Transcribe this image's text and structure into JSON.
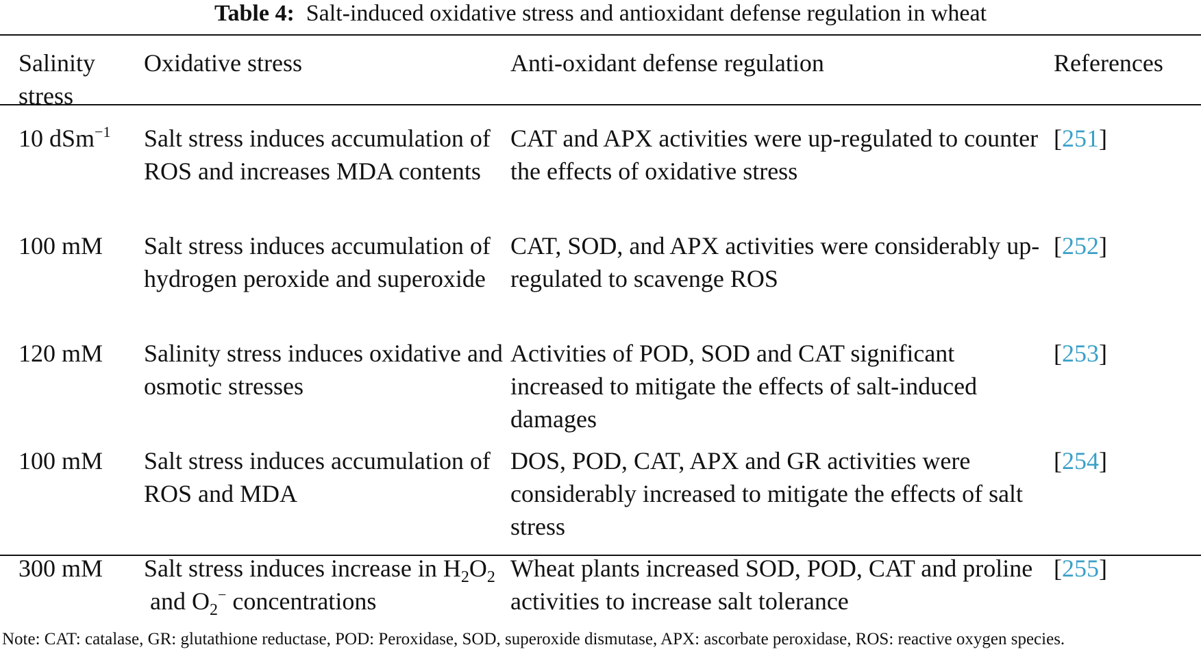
{
  "caption": {
    "label": "Table 4:",
    "title": "Salt-induced oxidative stress and antioxidant defense regulation in wheat"
  },
  "headers": {
    "salinity": "Salinity stress",
    "oxidative": "Oxidative stress",
    "antioxidant": "Anti-oxidant defense regulation",
    "references": "References"
  },
  "rows": [
    {
      "salinity": "10 dSm",
      "salinity_sup": "−1",
      "oxidative": "Salt stress induces accumulation of ROS and increases MDA contents",
      "antioxidant": "CAT and APX activities were up-regulated to counter the effects of oxidative stress",
      "ref": "251"
    },
    {
      "salinity": "100 mM",
      "oxidative": "Salt stress induces accumulation of hydrogen peroxide and superoxide",
      "antioxidant": "CAT, SOD, and APX activities were considerably up-regulated to scavenge ROS",
      "ref": "252"
    },
    {
      "salinity": "120 mM",
      "oxidative": "Salinity stress induces oxidative and osmotic stresses",
      "antioxidant": "Activities of POD, SOD and CAT significant increased to mitigate the effects of salt-induced damages",
      "ref": "253"
    },
    {
      "salinity": "100 mM",
      "oxidative": "Salt stress induces accumulation of ROS and MDA",
      "antioxidant": "DOS, POD, CAT, APX and GR activities were considerably increased to mitigate the effects of salt stress",
      "ref": "254"
    },
    {
      "salinity": "300 mM",
      "oxidative_prefix": "Salt stress induces increase in H",
      "oxidative_sub1": "2",
      "oxidative_mid1": "O",
      "oxidative_sub2": "2",
      "oxidative_mid2": " and O",
      "oxidative_sub3": "2",
      "oxidative_sup3": "−",
      "oxidative_suffix": " concentrations",
      "antioxidant": "Wheat plants increased SOD, POD, CAT and proline activities to increase salt tolerance",
      "ref": "255"
    }
  ],
  "note": "Note: CAT: catalase, GR: glutathione reductase, POD: Peroxidase, SOD, superoxide dismutase, APX: ascorbate peroxidase, ROS: reactive oxygen species.",
  "colors": {
    "link": "#3aa0c8",
    "text": "#111111"
  }
}
